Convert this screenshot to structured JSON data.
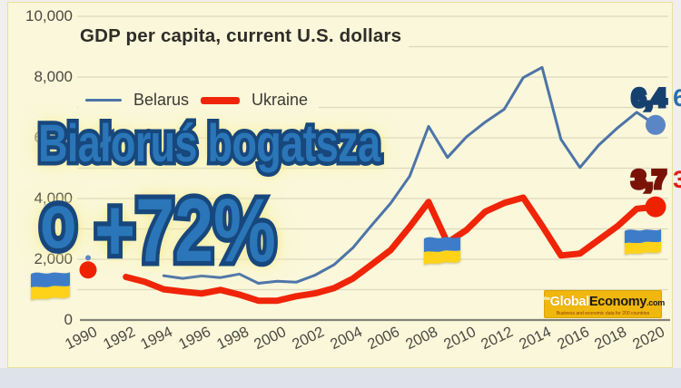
{
  "chart_data": {
    "type": "line",
    "title": "GDP per capita, current U.S. dollars",
    "xlabel": "",
    "ylabel": "",
    "xlim": [
      1990,
      2021
    ],
    "ylim": [
      0,
      10000
    ],
    "grid": "horizontal, every 1000",
    "legend_position": "top-left",
    "x_ticks": [
      1990,
      1992,
      1994,
      1996,
      1998,
      2000,
      2002,
      2004,
      2006,
      2008,
      2010,
      2012,
      2014,
      2016,
      2018,
      2020
    ],
    "y_ticks": [
      {
        "value": 0,
        "label": "0"
      },
      {
        "value": 2000,
        "label": "2,000"
      },
      {
        "value": 4000,
        "label": "4,000"
      },
      {
        "value": 6000,
        "label": "6,000"
      },
      {
        "value": 8000,
        "label": "8,000"
      },
      {
        "value": 10000,
        "label": "10,000"
      }
    ],
    "series": [
      {
        "name": "Belarus",
        "color": "#4d74a8",
        "stroke_width": 3,
        "dot_color": "#5b86c6",
        "end_dot_radius": 11,
        "end_label": "6,4",
        "label_fill": "#2a6fae",
        "label_outline": "#16406f",
        "years": [
          1994,
          1995,
          1996,
          1997,
          1998,
          1999,
          2000,
          2001,
          2002,
          2003,
          2004,
          2005,
          2006,
          2007,
          2008,
          2009,
          2010,
          2011,
          2012,
          2013,
          2014,
          2015,
          2016,
          2017,
          2018,
          2019,
          2020
        ],
        "values": [
          1460,
          1371,
          1452,
          1397,
          1512,
          1210,
          1276,
          1244,
          1479,
          1819,
          2378,
          3126,
          3847,
          4736,
          6377,
          5351,
          6029,
          6519,
          6940,
          7979,
          8318,
          5949,
          5022,
          5762,
          6330,
          6838,
          6424
        ]
      },
      {
        "name": "Ukraine",
        "color": "#f02408",
        "stroke_width": 7,
        "dot_color": "#ee2200",
        "end_dot_radius": 11.5,
        "end_label": "3,7",
        "label_fill": "#e02010",
        "label_outline": "#7a1208",
        "years": [
          1992,
          1993,
          1994,
          1995,
          1996,
          1997,
          1998,
          1999,
          2000,
          2001,
          2002,
          2003,
          2004,
          2005,
          2006,
          2007,
          2008,
          2009,
          2010,
          2011,
          2012,
          2013,
          2014,
          2015,
          2016,
          2017,
          2018,
          2019,
          2020
        ],
        "values": [
          1418,
          1258,
          1012,
          936,
          873,
          991,
          835,
          636,
          636,
          781,
          879,
          1048,
          1367,
          1829,
          2303,
          3069,
          3887,
          2545,
          2965,
          3570,
          3855,
          4030,
          3105,
          2125,
          2188,
          2641,
          3097,
          3661,
          3727
        ]
      }
    ],
    "isolated_points_1990": [
      {
        "series": "Belarus",
        "year": 1990,
        "value": 2050,
        "radius": 3
      },
      {
        "series": "Ukraine",
        "year": 1990,
        "value": 1650,
        "radius": 9.5
      }
    ]
  },
  "overlay": {
    "line1": "Białoruś bogatsza",
    "line2_word": "o",
    "line2_value": "+72%",
    "fill": "#2a76b8",
    "outline": "#17477c",
    "glow": "#f3eb9e"
  },
  "logo": {
    "prefix": "the",
    "brand1": "Global",
    "brand2": "Economy",
    "tld": ".com",
    "tagline": "Business and economic data for 200 countries",
    "bg": "#f0b70e"
  },
  "flags": {
    "country": "Ukraine",
    "top_color": "#3e7cc9",
    "bottom_color": "#ffd21a"
  }
}
